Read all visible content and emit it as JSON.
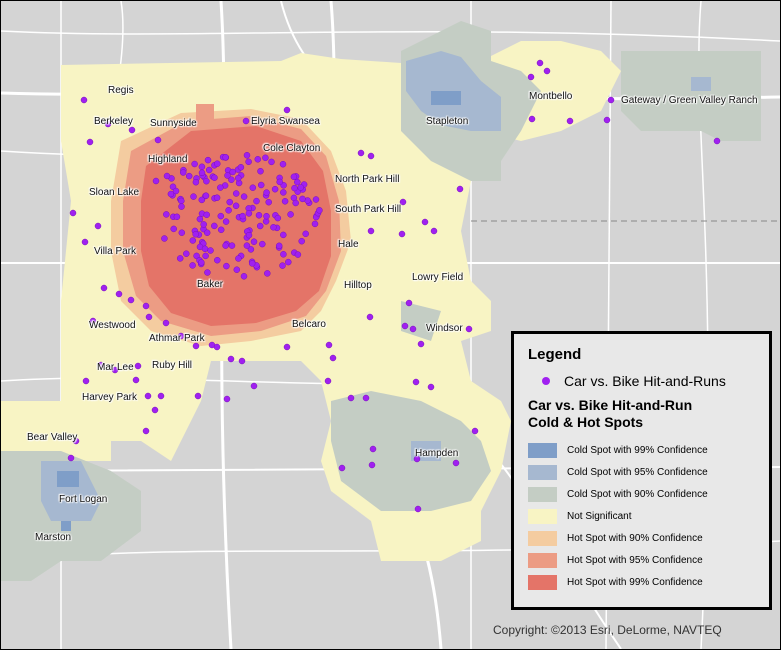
{
  "colors": {
    "background": "#d4d4d4",
    "road": "#ffffff",
    "point": "#a020f0",
    "cold99": "#7f9ec8",
    "cold95": "#a6b8d0",
    "cold90": "#c4cdc4",
    "not_significant": "#f8f4c4",
    "hot90": "#f4cca0",
    "hot95": "#ec9c84",
    "hot99": "#e47468"
  },
  "places": [
    {
      "name": "Regis"
    },
    {
      "name": "Berkeley"
    },
    {
      "name": "Sunnyside"
    },
    {
      "name": "Elyria Swansea"
    },
    {
      "name": "Cole Clayton"
    },
    {
      "name": "Highland"
    },
    {
      "name": "North Park Hill"
    },
    {
      "name": "Sloan Lake"
    },
    {
      "name": "South Park Hill"
    },
    {
      "name": "Hale"
    },
    {
      "name": "Villa Park"
    },
    {
      "name": "Baker"
    },
    {
      "name": "Hilltop"
    },
    {
      "name": "Lowry Field"
    },
    {
      "name": "Westwood"
    },
    {
      "name": "Belcaro"
    },
    {
      "name": "Windsor"
    },
    {
      "name": "Athmar Park"
    },
    {
      "name": "Mar Lee"
    },
    {
      "name": "Ruby Hill"
    },
    {
      "name": "Harvey Park"
    },
    {
      "name": "Bear Valley"
    },
    {
      "name": "Hampden"
    },
    {
      "name": "Fort Logan"
    },
    {
      "name": "Marston"
    },
    {
      "name": "Stapleton"
    },
    {
      "name": "Montbello"
    },
    {
      "name": "Gateway / Green Valley Ranch"
    }
  ],
  "legend": {
    "title": "Legend",
    "points_label": "Car vs. Bike Hit-and-Runs",
    "hotspot_title_line1": "Car vs. Bike Hit-and-Run",
    "hotspot_title_line2": "Cold & Hot Spots",
    "classes": [
      {
        "label": "Cold Spot with 99% Confidence",
        "color": "#7f9ec8"
      },
      {
        "label": "Cold Spot with 95% Confidence",
        "color": "#a6b8d0"
      },
      {
        "label": "Cold Spot with 90% Confidence",
        "color": "#c4cdc4"
      },
      {
        "label": "Not Significant",
        "color": "#f8f4c4"
      },
      {
        "label": "Hot Spot with 90% Confidence",
        "color": "#f4cca0"
      },
      {
        "label": "Hot Spot with 95% Confidence",
        "color": "#ec9c84"
      },
      {
        "label": "Hot Spot with 99% Confidence",
        "color": "#e47468"
      }
    ]
  },
  "copyright": "Copyright: ©2013 Esri, DeLorme, NAVTEQ"
}
